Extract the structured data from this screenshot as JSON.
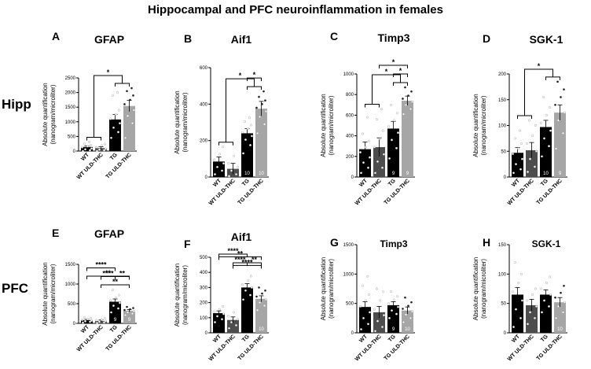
{
  "figure_title": "Hippocampal and PFC neuroinflammation in females",
  "row_labels": [
    "Hipp",
    "PFC"
  ],
  "colors": {
    "wt": "#000000",
    "wt_uld": "#4d4d4d",
    "tg": "#000000",
    "tg_uld": "#a6a6a6",
    "dot_light": "#ffffff",
    "dot_dark": "#222222"
  },
  "chart_data": [
    {
      "id": "A",
      "type": "bar",
      "title": "GFAP",
      "ylabel": [
        "Absolute quantification",
        "(nanogram/microliter)"
      ],
      "categories": [
        "WT",
        "WT ULD-THC",
        "TG",
        "TG ULD-THC"
      ],
      "values": [
        140,
        100,
        1080,
        1540
      ],
      "errors": [
        40,
        45,
        170,
        190
      ],
      "n": [
        "",
        "",
        "",
        ""
      ],
      "ylim": [
        0,
        2500
      ],
      "yticks": [
        0,
        500,
        1000,
        1500,
        2000,
        2500
      ],
      "points": [
        [
          0,
          30,
          60,
          90,
          130,
          160,
          200,
          250,
          310
        ],
        [
          0,
          30,
          50,
          80,
          130,
          190,
          240
        ],
        [
          450,
          650,
          800,
          950,
          1100,
          1250,
          1400,
          1900,
          2000
        ],
        [
          450,
          950,
          1200,
          1400,
          1600,
          1750,
          1900,
          2050,
          2150
        ]
      ],
      "sig": [
        {
          "type": "group",
          "left": [
            0,
            1
          ],
          "right": [
            2,
            3
          ],
          "label": "*"
        }
      ]
    },
    {
      "id": "B",
      "type": "bar",
      "title": "Aif1",
      "ylabel": [
        "Absolute quantification",
        "(nanogram/microliter)"
      ],
      "categories": [
        "WT",
        "WT ULD-THC",
        "TG",
        "TG ULD-THC"
      ],
      "values": [
        85,
        45,
        240,
        375
      ],
      "errors": [
        25,
        30,
        25,
        40
      ],
      "n": [
        "",
        "",
        "10",
        "10"
      ],
      "ylim": [
        0,
        600
      ],
      "yticks": [
        0,
        200,
        400,
        600
      ],
      "points": [
        [
          15,
          35,
          55,
          75,
          95,
          125,
          165
        ],
        [
          5,
          15,
          35,
          55,
          75,
          115
        ],
        [
          130,
          175,
          205,
          225,
          245,
          265,
          285,
          305,
          325
        ],
        [
          240,
          290,
          330,
          360,
          380,
          400,
          420,
          440,
          470
        ]
      ],
      "sig": [
        {
          "type": "group",
          "left": [
            0,
            1
          ],
          "right": [
            2,
            3
          ],
          "label": "*"
        },
        {
          "type": "pair",
          "a": 2,
          "b": 3,
          "label": "*"
        }
      ]
    },
    {
      "id": "C",
      "type": "bar",
      "title": "Timp3",
      "ylabel": [
        "Absolute quantification",
        "(nanogram/microliter)"
      ],
      "categories": [
        "WT",
        "WT ULD-THC",
        "TG",
        "TG ULD-THC"
      ],
      "values": [
        270,
        290,
        470,
        740
      ],
      "errors": [
        70,
        90,
        70,
        45
      ],
      "n": [
        "",
        "",
        "9",
        "9"
      ],
      "ylim": [
        0,
        1000
      ],
      "yticks": [
        0,
        200,
        400,
        600,
        800,
        1000
      ],
      "points": [
        [
          40,
          90,
          140,
          190,
          240,
          290,
          350,
          420,
          580
        ],
        [
          40,
          90,
          150,
          220,
          290,
          370,
          450,
          560,
          660
        ],
        [
          180,
          280,
          360,
          430,
          490,
          550,
          620,
          700
        ],
        [
          610,
          660,
          700,
          730,
          760,
          790,
          830,
          870
        ]
      ],
      "sig": [
        {
          "type": "group",
          "left": [
            0,
            1
          ],
          "right": [
            2,
            3
          ],
          "label": "*"
        },
        {
          "type": "pair",
          "a": 1,
          "b": 3,
          "label": "*"
        },
        {
          "type": "pair",
          "a": 2,
          "b": 3,
          "label": "*"
        }
      ]
    },
    {
      "id": "D",
      "type": "bar",
      "title": "SGK-1",
      "ylabel": [
        "Absolute quantification",
        "(nanogram/microliter)"
      ],
      "categories": [
        "WT",
        "WT ULD-THC",
        "TG",
        "TG ULD-THC"
      ],
      "values": [
        47,
        52,
        97,
        125
      ],
      "errors": [
        10,
        15,
        13,
        15
      ],
      "n": [
        "",
        "",
        "10",
        "9"
      ],
      "ylim": [
        0,
        200
      ],
      "yticks": [
        0,
        50,
        100,
        150,
        200
      ],
      "points": [
        [
          8,
          15,
          25,
          35,
          45,
          55,
          65,
          75,
          90
        ],
        [
          10,
          20,
          35,
          50,
          65,
          80,
          100,
          110
        ],
        [
          40,
          60,
          75,
          90,
          105,
          120,
          135,
          155
        ],
        [
          55,
          85,
          110,
          125,
          140,
          155,
          170,
          185
        ]
      ],
      "sig": [
        {
          "type": "group",
          "left": [
            0,
            1
          ],
          "right": [
            2,
            3
          ],
          "label": "*"
        }
      ]
    },
    {
      "id": "E",
      "type": "bar",
      "title": "GFAP",
      "ylabel": [
        "Absolute quantification",
        "(nanogram/microliter)"
      ],
      "categories": [
        "WT",
        "WT ULD-THC",
        "TG",
        "TG ULD-THC"
      ],
      "values": [
        80,
        60,
        550,
        320
      ],
      "errors": [
        20,
        25,
        70,
        30
      ],
      "n": [
        "",
        "",
        "9",
        "9"
      ],
      "ylim": [
        0,
        1500
      ],
      "yticks": [
        0,
        500,
        1000,
        1500
      ],
      "points": [
        [
          20,
          40,
          55,
          70,
          90,
          110,
          130,
          150
        ],
        [
          10,
          25,
          40,
          60,
          80,
          100,
          130
        ],
        [
          280,
          380,
          450,
          520,
          580,
          650,
          720,
          850
        ],
        [
          210,
          250,
          280,
          310,
          340,
          360,
          390,
          420
        ]
      ],
      "sig": [
        {
          "type": "pair",
          "a": 0,
          "b": 3,
          "label": "**"
        },
        {
          "type": "pair",
          "a": 1,
          "b": 3,
          "label": "**"
        },
        {
          "type": "pair",
          "a": 0,
          "b": 2,
          "label": "****"
        },
        {
          "type": "pair",
          "a": 1,
          "b": 2,
          "label": "****"
        },
        {
          "type": "pair",
          "a": 2,
          "b": 3,
          "label": "**"
        }
      ]
    },
    {
      "id": "F",
      "type": "bar",
      "title": "Aif1",
      "ylabel": [
        "Absolute quantification",
        "(nanogram/microliter)"
      ],
      "categories": [
        "WT",
        "WT ULD-THC",
        "TG",
        "TG ULD-THC"
      ],
      "values": [
        130,
        85,
        300,
        225
      ],
      "errors": [
        15,
        20,
        25,
        20
      ],
      "n": [
        "",
        "",
        "",
        "10"
      ],
      "ylim": [
        0,
        500
      ],
      "yticks": [
        0,
        100,
        200,
        300,
        400,
        500
      ],
      "points": [
        [
          70,
          90,
          110,
          125,
          140,
          155,
          175
        ],
        [
          30,
          50,
          70,
          90,
          110,
          135
        ],
        [
          220,
          250,
          280,
          300,
          320,
          345,
          375
        ],
        [
          150,
          180,
          200,
          220,
          240,
          260,
          280,
          300
        ]
      ],
      "sig": [
        {
          "type": "pair",
          "a": 0,
          "b": 3,
          "label": "**"
        },
        {
          "type": "pair",
          "a": 1,
          "b": 3,
          "label": "****"
        },
        {
          "type": "pair",
          "a": 0,
          "b": 2,
          "label": "****"
        },
        {
          "type": "pair",
          "a": 1,
          "b": 2,
          "label": "****"
        },
        {
          "type": "pair",
          "a": 2,
          "b": 3,
          "label": "**"
        }
      ]
    },
    {
      "id": "G",
      "type": "bar",
      "title": "Timp3",
      "ylabel": [
        "Absolute quantification",
        "(nanogram/microliter)"
      ],
      "categories": [
        "WT",
        "WT ULD-THC",
        "TG",
        "TG ULD-THC"
      ],
      "values": [
        440,
        350,
        470,
        380
      ],
      "errors": [
        90,
        100,
        60,
        60
      ],
      "n": [
        "",
        "",
        "9",
        "10"
      ],
      "ylim": [
        0,
        1500
      ],
      "yticks": [
        0,
        500,
        1000,
        1500
      ],
      "points": [
        [
          60,
          150,
          250,
          350,
          450,
          550,
          650,
          800,
          960
        ],
        [
          30,
          100,
          200,
          300,
          400,
          550,
          700,
          750
        ],
        [
          250,
          320,
          380,
          440,
          500,
          560,
          620,
          700
        ],
        [
          180,
          250,
          310,
          360,
          410,
          460,
          520,
          600
        ]
      ],
      "sig": []
    },
    {
      "id": "H",
      "type": "bar",
      "title": "SGK-1",
      "ylabel": [
        "Absolute quantification",
        "(nanogram/microliter)"
      ],
      "categories": [
        "WT",
        "WT ULD-THC",
        "TG",
        "TG ULD-THC"
      ],
      "values": [
        65,
        47,
        65,
        52
      ],
      "errors": [
        12,
        10,
        8,
        8
      ],
      "n": [
        "",
        "",
        "",
        "10"
      ],
      "ylim": [
        0,
        150
      ],
      "yticks": [
        0,
        50,
        100,
        150
      ],
      "points": [
        [
          10,
          25,
          40,
          55,
          70,
          85,
          100,
          120
        ],
        [
          15,
          25,
          35,
          45,
          55,
          65,
          75
        ],
        [
          35,
          45,
          55,
          65,
          75,
          85,
          95
        ],
        [
          25,
          35,
          45,
          52,
          60,
          68,
          80
        ]
      ],
      "sig": []
    }
  ]
}
